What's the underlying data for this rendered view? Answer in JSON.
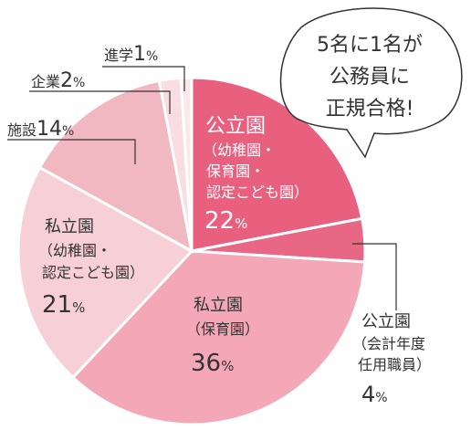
{
  "chart_data": {
    "type": "pie",
    "slices": [
      {
        "label": "公立園(幼稚園・保育園・認定こども園)",
        "value": 22,
        "color": "#e8607e"
      },
      {
        "label": "公立園(会計年度任用職員)",
        "value": 4,
        "color": "#e86784"
      },
      {
        "label": "私立園(保育園)",
        "value": 36,
        "color": "#f3a7b7"
      },
      {
        "label": "私立園(幼稚園・認定こども園)",
        "value": 21,
        "color": "#f7cfd6"
      },
      {
        "label": "施設",
        "value": 14,
        "color": "#f2b8c1"
      },
      {
        "label": "企業",
        "value": 2,
        "color": "#f9dde2"
      },
      {
        "label": "進学",
        "value": 1,
        "color": "#fbe8eb"
      }
    ]
  },
  "labels": {
    "koritsu_main": {
      "l1": "公立園",
      "l2": "（幼稚園・",
      "l3": "保育園・",
      "l4": "認定こども園）",
      "num": "22",
      "unit": "%"
    },
    "koritsu_kaikei": {
      "l1": "公立園",
      "l2": "（会計年度",
      "l3": "任用職員）",
      "num": "4",
      "unit": "%"
    },
    "shiritsu_hoiku": {
      "l1": "私立園",
      "l2": "（保育園）",
      "num": "36",
      "unit": "%"
    },
    "shiritsu_yochi": {
      "l1": "私立園",
      "l2": "（幼稚園・",
      "l3": "認定こども園）",
      "num": "21",
      "unit": "%"
    },
    "shisetsu": {
      "name": "施設",
      "num": "14",
      "unit": "%"
    },
    "kigyo": {
      "name": "企業",
      "num": "2",
      "unit": "%"
    },
    "shingaku": {
      "name": "進学",
      "num": "1",
      "unit": "%"
    }
  },
  "bubble": {
    "l1": "5名に1名が",
    "l2": "公務員に",
    "l3": "正規合格!"
  }
}
